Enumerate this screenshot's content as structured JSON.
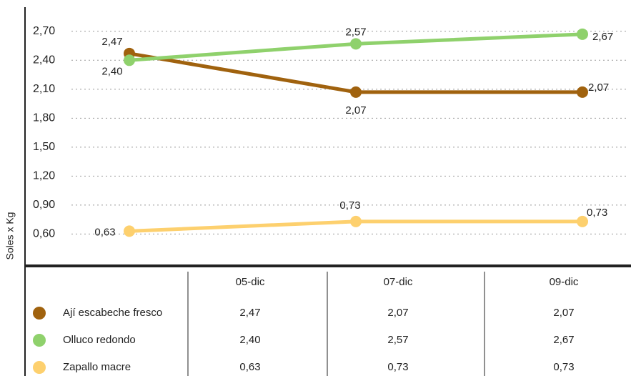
{
  "chart_data": {
    "type": "line",
    "y_label": "Soles x Kg",
    "categories": [
      "05-dic",
      "07-dic",
      "09-dic"
    ],
    "series": [
      {
        "name": "Ají escabeche fresco",
        "color": "#a0620e",
        "values": [
          2.47,
          2.07,
          2.07
        ],
        "value_labels": [
          "2,47",
          "2,07",
          "2,07"
        ]
      },
      {
        "name": "Olluco redondo",
        "color": "#8fd16c",
        "values": [
          2.4,
          2.57,
          2.67
        ],
        "value_labels": [
          "2,40",
          "2,57",
          "2,67"
        ]
      },
      {
        "name": "Zapallo macre",
        "color": "#fdd06e",
        "values": [
          0.63,
          0.73,
          0.73
        ],
        "value_labels": [
          "0,63",
          "0,73",
          "0,73"
        ]
      }
    ],
    "ylim": [
      0.27,
      2.95
    ],
    "yticks": [
      {
        "value": 0.6,
        "label": "0,60"
      },
      {
        "value": 0.9,
        "label": "0,90"
      },
      {
        "value": 1.2,
        "label": "1,20"
      },
      {
        "value": 1.5,
        "label": "1,50"
      },
      {
        "value": 1.8,
        "label": "1,80"
      },
      {
        "value": 2.1,
        "label": "2,10"
      },
      {
        "value": 2.4,
        "label": "2,40"
      },
      {
        "value": 2.7,
        "label": "2,70"
      }
    ],
    "grid": true
  }
}
